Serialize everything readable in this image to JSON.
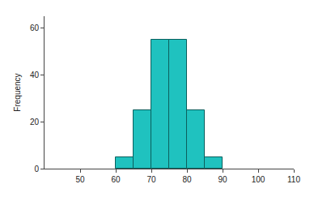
{
  "chart_data": {
    "type": "histogram",
    "bins": [
      60,
      65,
      70,
      75,
      80,
      85,
      90
    ],
    "values": [
      5,
      25,
      55,
      55,
      25,
      5
    ],
    "y_label": "Frequency",
    "color": "#1fc2bf",
    "xlim": [
      40,
      110
    ],
    "xticks": [
      50,
      60,
      70,
      80,
      90,
      100,
      110
    ],
    "ylim": [
      0,
      65
    ],
    "yticks": [
      0,
      20,
      40,
      60
    ],
    "grid": false
  }
}
